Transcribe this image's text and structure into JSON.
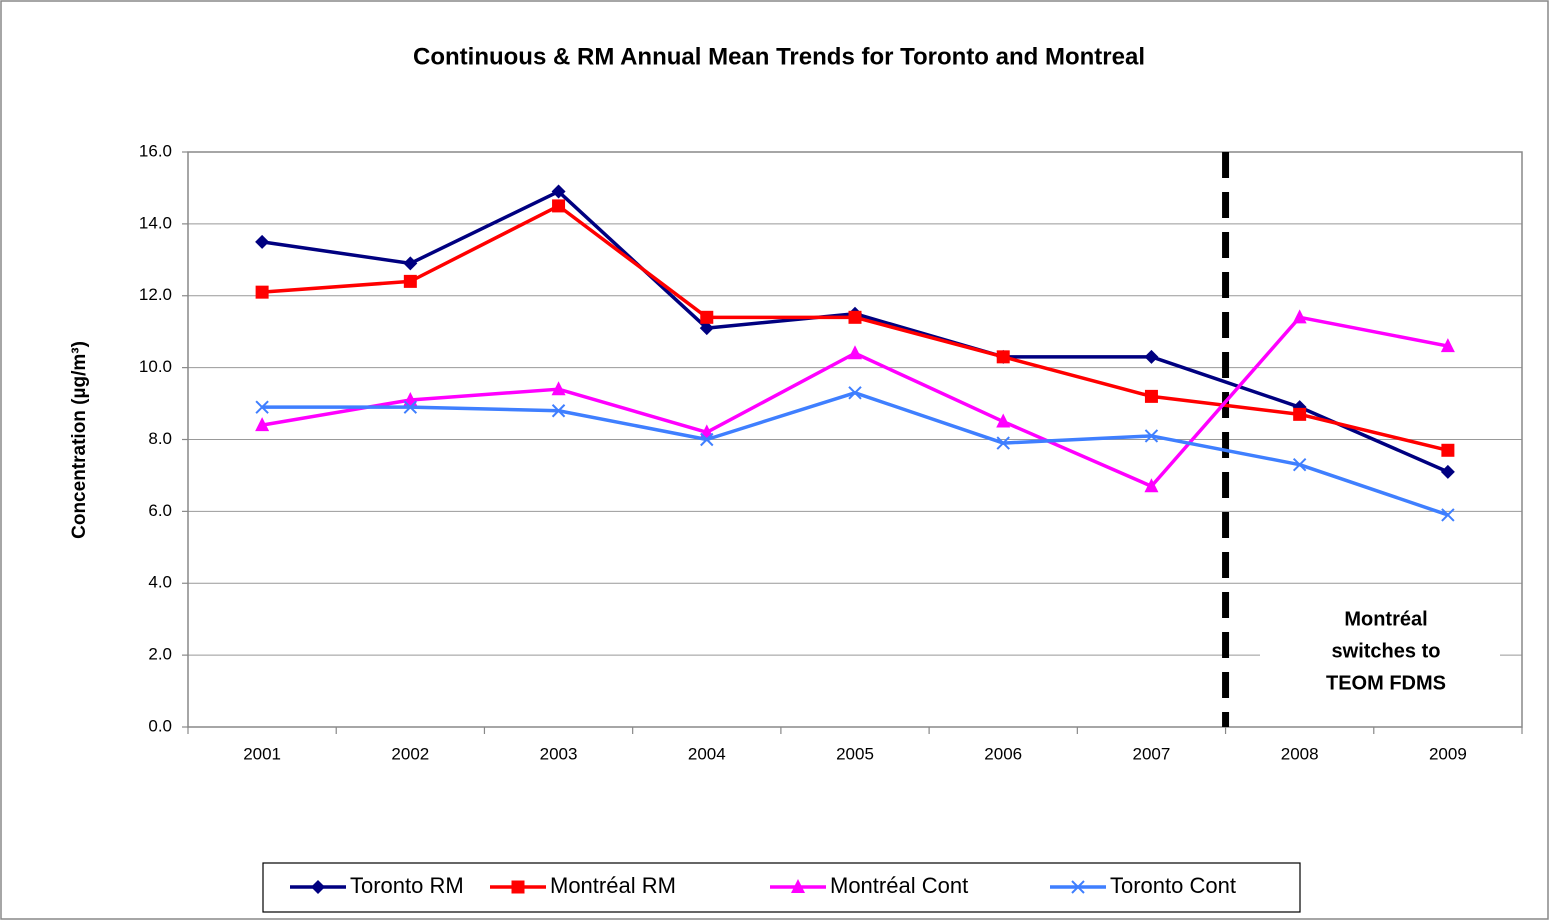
{
  "chart_data": {
    "type": "line",
    "title": "Continuous & RM Annual Mean Trends for Toronto and Montreal",
    "y_label": "Concentration (µg/m³)",
    "categories": [
      "2001",
      "2002",
      "2003",
      "2004",
      "2005",
      "2006",
      "2007",
      "2008",
      "2009"
    ],
    "series": [
      {
        "name": "Toronto RM",
        "color": "#000080",
        "marker": "diamond",
        "values": [
          13.5,
          12.9,
          14.9,
          11.1,
          11.5,
          10.3,
          10.3,
          8.9,
          7.1
        ]
      },
      {
        "name": "Montréal RM",
        "color": "#ff0000",
        "marker": "square",
        "values": [
          12.1,
          12.4,
          14.5,
          11.4,
          11.4,
          10.3,
          9.2,
          8.7,
          7.7
        ]
      },
      {
        "name": "Montréal Cont",
        "color": "#ff00ff",
        "marker": "triangle",
        "values": [
          8.4,
          9.1,
          9.4,
          8.2,
          10.4,
          8.5,
          6.7,
          11.4,
          10.6
        ]
      },
      {
        "name": "Toronto Cont",
        "color": "#3f7fff",
        "marker": "x",
        "values": [
          8.9,
          8.9,
          8.8,
          8.0,
          9.3,
          7.9,
          8.1,
          7.3,
          5.9
        ]
      }
    ],
    "ylim": [
      0,
      16
    ],
    "yticks": [
      {
        "value": 0,
        "label": "0.0"
      },
      {
        "value": 2,
        "label": "2.0"
      },
      {
        "value": 4,
        "label": "4.0"
      },
      {
        "value": 6,
        "label": "6.0"
      },
      {
        "value": 8,
        "label": "8.0"
      },
      {
        "value": 10,
        "label": "10.0"
      },
      {
        "value": 12,
        "label": "12.0"
      },
      {
        "value": 14,
        "label": "14.0"
      },
      {
        "value": 16,
        "label": "16.0"
      }
    ],
    "grid": true,
    "legend": "bottom",
    "annotation": [
      "Montréal",
      "switches to",
      "TEOM FDMS"
    ]
  }
}
